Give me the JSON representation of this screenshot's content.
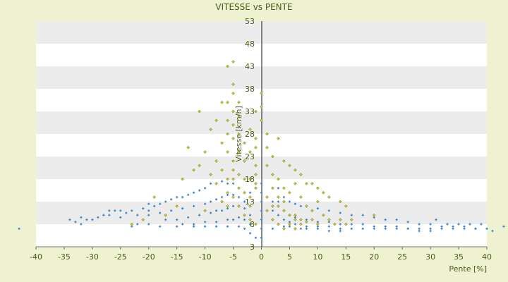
{
  "chart_data": {
    "type": "scatter",
    "title": "VITESSE vs PENTE",
    "xlabel": "Pente [%]",
    "ylabel": "Vitesse [km/h]",
    "xlim": [
      -40,
      40
    ],
    "ylim": [
      3,
      53
    ],
    "x_ticks": [
      -40,
      -35,
      -30,
      -25,
      -20,
      -15,
      -10,
      -5,
      0,
      5,
      10,
      15,
      20,
      25,
      30,
      35,
      40
    ],
    "y_ticks": [
      3,
      8,
      13,
      18,
      23,
      28,
      33,
      38,
      43,
      48,
      53
    ],
    "grid": "horizontal alternating bands",
    "legend": "none",
    "colors": {
      "blue_series": "#3f86c9",
      "yellow_series": "#c8c832",
      "band": "#ececec",
      "plot_bg": "#ffffff",
      "page_bg": "#eef2d0",
      "text": "#4f5a1c"
    },
    "series": [
      {
        "marker": "plus",
        "color": "#3f86c9",
        "points": [
          [
            -43,
            7
          ],
          [
            -34,
            9
          ],
          [
            -33,
            8.5
          ],
          [
            -32,
            9.5
          ],
          [
            -32,
            8
          ],
          [
            -31,
            9
          ],
          [
            -30,
            9
          ],
          [
            -29,
            9.5
          ],
          [
            -28,
            10
          ],
          [
            -27,
            10
          ],
          [
            -27,
            11
          ],
          [
            -26,
            11
          ],
          [
            -25,
            9.5
          ],
          [
            -25,
            11
          ],
          [
            -24,
            10.5
          ],
          [
            -23,
            11
          ],
          [
            -23,
            7.5
          ],
          [
            -22,
            10
          ],
          [
            -21,
            11.5
          ],
          [
            -20,
            11
          ],
          [
            -20,
            12.5
          ],
          [
            -19,
            12
          ],
          [
            -18,
            12.5
          ],
          [
            -17,
            13
          ],
          [
            -16,
            13.5
          ],
          [
            -15,
            14
          ],
          [
            -14,
            14
          ],
          [
            -13,
            14.5
          ],
          [
            -12,
            15
          ],
          [
            -11,
            15.5
          ],
          [
            -10,
            16
          ],
          [
            -9,
            17
          ],
          [
            -8,
            17
          ],
          [
            -7,
            17.5
          ],
          [
            -6,
            17
          ],
          [
            -5,
            17
          ],
          [
            -4,
            16
          ],
          [
            -3,
            15
          ],
          [
            -2,
            15
          ],
          [
            -1,
            16
          ],
          [
            -20,
            10
          ],
          [
            -18,
            10.5
          ],
          [
            -16,
            11
          ],
          [
            -14,
            11.5
          ],
          [
            -12,
            12
          ],
          [
            -10,
            12.5
          ],
          [
            -9,
            13
          ],
          [
            -8,
            13.5
          ],
          [
            -7,
            14
          ],
          [
            -6,
            14.5
          ],
          [
            -5,
            14.5
          ],
          [
            -4,
            14
          ],
          [
            -3,
            13
          ],
          [
            -17,
            9
          ],
          [
            -15,
            9
          ],
          [
            -13,
            9.5
          ],
          [
            -11,
            10
          ],
          [
            -9,
            10.5
          ],
          [
            -8,
            11
          ],
          [
            -7,
            11
          ],
          [
            -6,
            11.5
          ],
          [
            -5,
            12
          ],
          [
            -4,
            12
          ],
          [
            -3,
            11.5
          ],
          [
            -2,
            10
          ],
          [
            -14,
            8
          ],
          [
            -12,
            8
          ],
          [
            -10,
            8.5
          ],
          [
            -8,
            8.5
          ],
          [
            -6,
            9
          ],
          [
            -5,
            9
          ],
          [
            -4,
            9.5
          ],
          [
            -3,
            9
          ],
          [
            -2,
            8
          ],
          [
            -22,
            8
          ],
          [
            -20,
            8
          ],
          [
            -18,
            7.5
          ],
          [
            -15,
            7.5
          ],
          [
            -12,
            7.5
          ],
          [
            -10,
            7.5
          ],
          [
            -8,
            7.5
          ],
          [
            -6,
            7.5
          ],
          [
            -4,
            7.5
          ],
          [
            -3,
            7
          ],
          [
            -2,
            6
          ],
          [
            -1,
            5
          ],
          [
            2,
            13
          ],
          [
            2,
            11
          ],
          [
            2,
            9
          ],
          [
            2,
            7
          ],
          [
            3,
            16
          ],
          [
            4,
            14
          ],
          [
            5,
            13
          ],
          [
            6,
            12.5
          ],
          [
            7,
            12
          ],
          [
            8,
            12
          ],
          [
            10,
            11.5
          ],
          [
            12,
            11
          ],
          [
            14,
            10.5
          ],
          [
            16,
            10
          ],
          [
            18,
            10
          ],
          [
            20,
            9.5
          ],
          [
            22,
            9
          ],
          [
            24,
            9
          ],
          [
            26,
            8.5
          ],
          [
            28,
            8
          ],
          [
            30,
            8
          ],
          [
            32,
            7.5
          ],
          [
            34,
            7.5
          ],
          [
            36,
            7.5
          ],
          [
            38,
            7
          ],
          [
            40,
            7
          ],
          [
            43,
            7.5
          ],
          [
            3,
            13
          ],
          [
            4,
            11
          ],
          [
            5,
            10
          ],
          [
            6,
            9.5
          ],
          [
            7,
            9
          ],
          [
            8,
            9
          ],
          [
            10,
            8.5
          ],
          [
            12,
            8.5
          ],
          [
            14,
            8
          ],
          [
            16,
            8
          ],
          [
            18,
            8
          ],
          [
            20,
            7.5
          ],
          [
            22,
            7.5
          ],
          [
            24,
            7.5
          ],
          [
            26,
            7
          ],
          [
            28,
            7
          ],
          [
            30,
            7
          ],
          [
            32,
            7
          ],
          [
            34,
            7
          ],
          [
            36,
            7
          ],
          [
            38,
            7
          ],
          [
            3,
            10
          ],
          [
            4,
            9
          ],
          [
            5,
            8.5
          ],
          [
            6,
            8
          ],
          [
            7,
            8
          ],
          [
            8,
            7.5
          ],
          [
            10,
            7.5
          ],
          [
            12,
            7.5
          ],
          [
            14,
            7
          ],
          [
            16,
            7
          ],
          [
            18,
            7
          ],
          [
            20,
            7
          ],
          [
            22,
            7
          ],
          [
            24,
            7
          ],
          [
            26,
            7
          ],
          [
            28,
            6.5
          ],
          [
            30,
            6.5
          ],
          [
            3,
            8
          ],
          [
            4,
            7.5
          ],
          [
            5,
            7.5
          ],
          [
            6,
            7
          ],
          [
            7,
            7
          ],
          [
            8,
            7
          ],
          [
            10,
            7
          ],
          [
            12,
            6.5
          ],
          [
            14,
            6.5
          ],
          [
            0,
            5
          ],
          [
            0,
            7
          ],
          [
            0,
            9
          ],
          [
            0,
            11
          ],
          [
            0,
            13
          ],
          [
            0,
            15
          ],
          [
            0,
            17
          ],
          [
            31,
            9
          ],
          [
            33,
            8
          ],
          [
            35,
            8
          ],
          [
            37,
            8
          ],
          [
            39,
            8
          ],
          [
            41,
            6.5
          ]
        ]
      },
      {
        "marker": "diamond",
        "color": "#c8c832",
        "points": [
          [
            -6,
            43
          ],
          [
            -5,
            44
          ],
          [
            -5,
            39
          ],
          [
            -5,
            37
          ],
          [
            -6,
            35
          ],
          [
            -4,
            35
          ],
          [
            -5,
            33
          ],
          [
            -6,
            31
          ],
          [
            -4,
            32
          ],
          [
            -5,
            30
          ],
          [
            -6,
            28
          ],
          [
            -4,
            28
          ],
          [
            -5,
            27
          ],
          [
            -7,
            26
          ],
          [
            -3,
            26
          ],
          [
            -6,
            24
          ],
          [
            -4,
            24
          ],
          [
            -5,
            22
          ],
          [
            -8,
            22
          ],
          [
            -3,
            22
          ],
          [
            -7,
            20
          ],
          [
            -5,
            20
          ],
          [
            -4,
            19
          ],
          [
            -9,
            19
          ],
          [
            -6,
            18
          ],
          [
            -5,
            18
          ],
          [
            -3,
            18
          ],
          [
            -8,
            17
          ],
          [
            -4,
            16
          ],
          [
            -6,
            15
          ],
          [
            -3,
            15
          ],
          [
            -5,
            14
          ],
          [
            -2,
            14
          ],
          [
            -7,
            13
          ],
          [
            -4,
            12
          ],
          [
            -6,
            12
          ],
          [
            -2,
            12
          ],
          [
            -10,
            11
          ],
          [
            -3,
            10
          ],
          [
            -12,
            20
          ],
          [
            -13,
            25
          ],
          [
            -11,
            33
          ],
          [
            -9,
            29
          ],
          [
            -8,
            31
          ],
          [
            -7,
            35
          ],
          [
            -10,
            24
          ],
          [
            -11,
            21
          ],
          [
            -14,
            18
          ],
          [
            -15,
            12
          ],
          [
            -17,
            10
          ],
          [
            -19,
            14
          ],
          [
            -21,
            9
          ],
          [
            -23,
            8
          ],
          [
            -1,
            33
          ],
          [
            -2,
            29
          ],
          [
            -1,
            27
          ],
          [
            -1,
            25
          ],
          [
            -2,
            24
          ],
          [
            -1,
            21
          ],
          [
            -1,
            19
          ],
          [
            -2,
            18
          ],
          [
            -1,
            17
          ],
          [
            -1,
            16
          ],
          [
            -2,
            9
          ],
          [
            -1,
            8
          ],
          [
            0,
            37
          ],
          [
            0,
            34
          ],
          [
            0,
            31
          ],
          [
            1,
            28
          ],
          [
            1,
            25
          ],
          [
            2,
            23
          ],
          [
            1,
            21
          ],
          [
            2,
            19
          ],
          [
            3,
            18
          ],
          [
            2,
            16
          ],
          [
            3,
            14
          ],
          [
            4,
            13
          ],
          [
            3,
            12
          ],
          [
            4,
            11
          ],
          [
            5,
            10
          ],
          [
            6,
            9
          ],
          [
            5,
            8
          ],
          [
            6,
            10
          ],
          [
            7,
            9
          ],
          [
            8,
            8.5
          ],
          [
            7,
            8
          ],
          [
            9,
            9
          ],
          [
            10,
            8
          ],
          [
            11,
            10
          ],
          [
            12,
            9
          ],
          [
            13,
            8
          ],
          [
            14,
            9
          ],
          [
            15,
            8
          ],
          [
            16,
            9
          ],
          [
            20,
            10
          ],
          [
            6,
            7
          ],
          [
            4,
            7
          ],
          [
            3,
            8
          ],
          [
            2,
            9
          ],
          [
            3,
            27
          ],
          [
            4,
            22
          ],
          [
            5,
            21
          ],
          [
            6,
            20
          ],
          [
            7,
            19
          ],
          [
            8,
            17
          ],
          [
            9,
            17
          ],
          [
            10,
            16
          ],
          [
            11,
            15
          ],
          [
            12,
            14
          ],
          [
            7,
            14
          ],
          [
            8,
            12
          ],
          [
            9,
            11
          ],
          [
            10,
            13
          ],
          [
            14,
            13
          ],
          [
            15,
            12
          ],
          [
            5,
            15
          ],
          [
            6,
            17
          ],
          [
            4,
            16
          ],
          [
            2,
            12
          ],
          [
            1,
            14
          ],
          [
            1,
            11
          ]
        ]
      }
    ]
  }
}
